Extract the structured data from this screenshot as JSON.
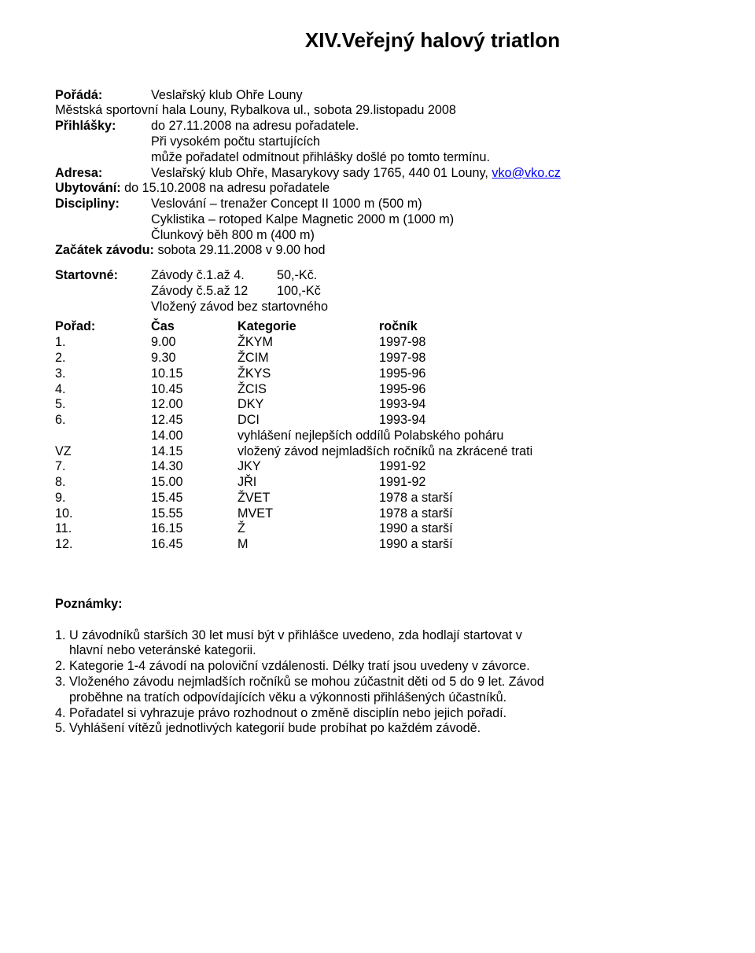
{
  "title": "XIV.Veřejný halový triatlon",
  "info": {
    "porada_label": "Pořádá:",
    "porada_value": "Veslařský klub Ohře Louny",
    "venue": "Městská sportovní hala Louny, Rybalkova ul., sobota 29.listopadu 2008",
    "prihl_label": "Přihlášky:",
    "prihl_value": "do 27.11.2008 na adresu pořadatele.",
    "prihl_cont1": "Při vysokém počtu startujících",
    "prihl_cont2": "může pořadatel odmítnout přihlášky došlé po tomto termínu.",
    "adresa_label": "Adresa:",
    "adresa_prefix": "Veslařský klub Ohře, Masarykovy sady 1765, 440 01 Louny, ",
    "adresa_email": "vko@vko.cz",
    "ubyt_label": "Ubytování:",
    "ubyt_value": " do 15.10.2008 na adresu pořadatele",
    "disc_label": "Discipliny:",
    "disc1": "Veslování – trenažer Concept II 1000 m (500 m)",
    "disc2": "Cyklistika – rotoped Kalpe Magnetic 2000 m (1000 m)",
    "disc3": "Člunkový běh 800 m (400 m)",
    "zacatek_label": "Začátek závodu:",
    "zacatek_value": " sobota 29.11.2008 v 9.00 hod"
  },
  "fees": {
    "label": "Startovné:",
    "r1_lbl": "Závody č.1.až 4.",
    "r1_amt": "50,-Kč.",
    "r2_lbl": "Závody č.5.až 12",
    "r2_amt": "100,-Kč",
    "r3": "Vložený závod bez startovného"
  },
  "schedule": {
    "h0": "Pořad:",
    "h1": "Čas",
    "h2": "Kategorie",
    "h3": "ročník",
    "rows": [
      {
        "n": "1.",
        "t": "9.00",
        "k": "ŽKYM",
        "r": "1997-98"
      },
      {
        "n": "2.",
        "t": "9.30",
        "k": "ŽCIM",
        "r": "1997-98"
      },
      {
        "n": "3.",
        "t": "10.15",
        "k": "ŽKYS",
        "r": "1995-96"
      },
      {
        "n": "4.",
        "t": "10.45",
        "k": "ŽCIS",
        "r": "1995-96"
      },
      {
        "n": "5.",
        "t": "12.00",
        "k": "DKY",
        "r": "1993-94"
      },
      {
        "n": "6.",
        "t": "12.45",
        "k": "DCI",
        "r": "1993-94"
      },
      {
        "n": "",
        "t": "14.00",
        "k": "vyhlášení nejlepších oddílů Polabského poháru",
        "r": ""
      },
      {
        "n": "VZ",
        "t": "14.15",
        "k": "vložený závod nejmladších ročníků na zkrácené trati",
        "r": ""
      },
      {
        "n": "7.",
        "t": "14.30",
        "k": "JKY",
        "r": "1991-92"
      },
      {
        "n": "8.",
        "t": "15.00",
        "k": "JŘI",
        "r": "1991-92"
      },
      {
        "n": "9.",
        "t": "15.45",
        "k": "ŽVET",
        "r": "1978 a starší"
      },
      {
        "n": "10.",
        "t": "15.55",
        "k": "MVET",
        "r": "1978 a starší"
      },
      {
        "n": "11.",
        "t": "16.15",
        "k": "Ž",
        "r": "1990 a starší"
      },
      {
        "n": "12.",
        "t": "16.45",
        "k": "M",
        "r": "1990 a starší"
      }
    ]
  },
  "notes": {
    "head": "Poznámky:",
    "n1a": "1. U závodníků starších 30 let musí být v přihlášce uvedeno, zda hodlají startovat v",
    "n1b": "hlavní nebo veteránské kategorii.",
    "n2": "2. Kategorie 1-4 závodí na poloviční vzdálenosti. Délky tratí jsou uvedeny v závorce.",
    "n3a": "3. Vloženého závodu nejmladších ročníků se mohou zúčastnit děti od 5 do 9 let. Závod",
    "n3b": "proběhne na tratích odpovídajících věku a výkonnosti přihlášených účastníků.",
    "n4": "4. Pořadatel si vyhrazuje právo rozhodnout o změně disciplín nebo jejich pořadí.",
    "n5": "5. Vyhlášení vítězů jednotlivých kategorií bude probíhat po každém závodě."
  }
}
